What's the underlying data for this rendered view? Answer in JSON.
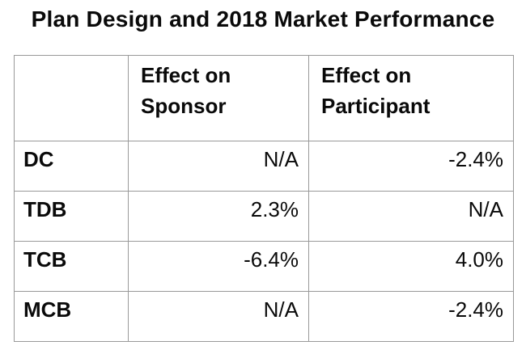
{
  "title": "Plan Design and 2018 Market Performance",
  "table": {
    "corner_label": "",
    "columns": [
      "Effect on Sponsor",
      "Effect on Participant"
    ],
    "rows": [
      {
        "label": "DC",
        "sponsor": "N/A",
        "participant": "-2.4%"
      },
      {
        "label": "TDB",
        "sponsor": "2.3%",
        "participant": "N/A"
      },
      {
        "label": "TCB",
        "sponsor": "-6.4%",
        "participant": "4.0%"
      },
      {
        "label": "MCB",
        "sponsor": "N/A",
        "participant": "-2.4%"
      }
    ]
  },
  "colors": {
    "border": "#999999",
    "text": "#0a0a0a",
    "background": "#ffffff"
  },
  "chart_data": {
    "type": "table",
    "title": "Plan Design and 2018 Market Performance",
    "columns": [
      "",
      "Effect on Sponsor",
      "Effect on Participant"
    ],
    "rows": [
      [
        "DC",
        "N/A",
        "-2.4%"
      ],
      [
        "TDB",
        "2.3%",
        "N/A"
      ],
      [
        "TCB",
        "-6.4%",
        "4.0%"
      ],
      [
        "MCB",
        "N/A",
        "-2.4%"
      ]
    ],
    "notes": {
      "values_numeric": {
        "sponsor_pct": [
          null,
          2.3,
          -6.4,
          null
        ],
        "participant_pct": [
          -2.4,
          null,
          4.0,
          -2.4
        ]
      }
    }
  }
}
